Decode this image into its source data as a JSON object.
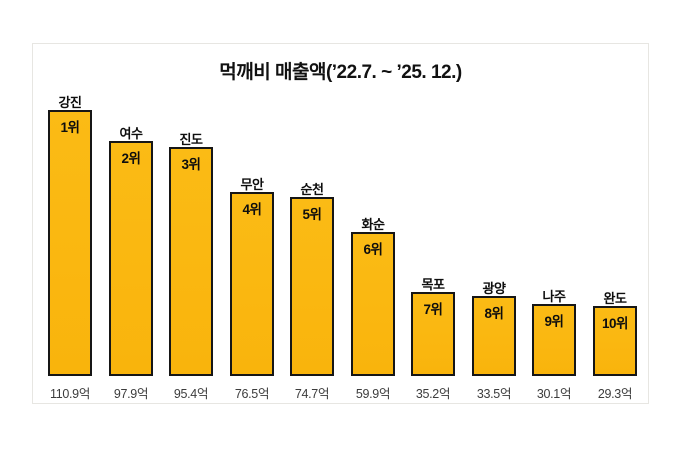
{
  "chart_data": {
    "type": "bar",
    "title": "먹깨비 매출액(’22.7. ~ ’25. 12.)",
    "categories": [
      "강진",
      "여수",
      "진도",
      "무안",
      "순천",
      "화순",
      "목포",
      "광양",
      "나주",
      "완도"
    ],
    "values": [
      110.9,
      97.9,
      95.4,
      76.5,
      74.7,
      59.9,
      35.2,
      33.5,
      30.1,
      29.3
    ],
    "rank_labels": [
      "1위",
      "2위",
      "3위",
      "4위",
      "5위",
      "6위",
      "7위",
      "8위",
      "9위",
      "10위"
    ],
    "value_labels": [
      "110.9억",
      "97.9억",
      "95.4억",
      "76.5억",
      "74.7억",
      "59.9억",
      "35.2억",
      "33.5억",
      "30.1억",
      "29.3억"
    ],
    "unit": "억",
    "xlabel": "",
    "ylabel": "",
    "ylim": [
      0,
      120
    ],
    "grid": false,
    "legend": "none",
    "bar_color": "#f9b40c",
    "bar_border_color": "#161616"
  },
  "colors": {
    "panel_border": "#e7e6e2",
    "label_text": "#0e0e0e",
    "value_text": "#3c3c3c",
    "title_text": "#111111"
  }
}
